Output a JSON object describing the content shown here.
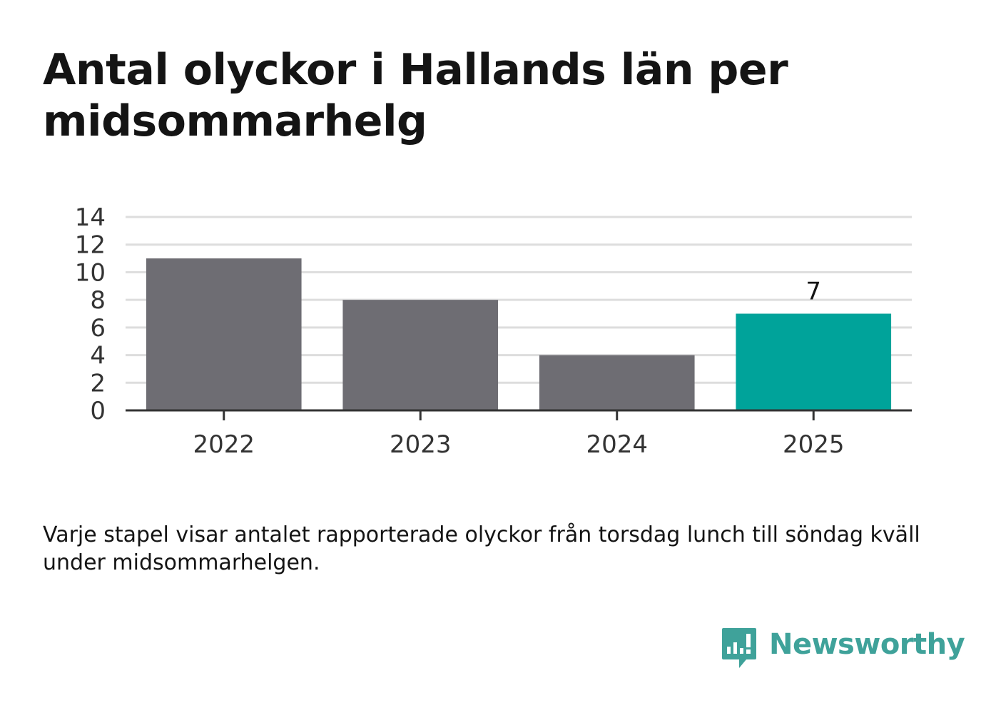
{
  "title": "Antal olyckor i Hallands län per midsommarhelg",
  "note": "Varje stapel visar antalet rapporterade olyckor från torsdag lunch till söndag kväll under midsommarhelgen.",
  "brand": {
    "name": "Newsworthy",
    "icon": "newsworthy-logo-icon",
    "color": "#3fa29a"
  },
  "chart_data": {
    "type": "bar",
    "categories": [
      "2022",
      "2023",
      "2024",
      "2025"
    ],
    "values": [
      11,
      8,
      4,
      7
    ],
    "colors": [
      "#6e6d73",
      "#6e6d73",
      "#6e6d73",
      "#00a39a"
    ],
    "data_labels": [
      null,
      null,
      null,
      "7"
    ],
    "ylim": [
      0,
      14
    ],
    "yticks": [
      0,
      2,
      4,
      6,
      8,
      10,
      12,
      14
    ],
    "grid": true,
    "xlabel": "",
    "ylabel": ""
  }
}
